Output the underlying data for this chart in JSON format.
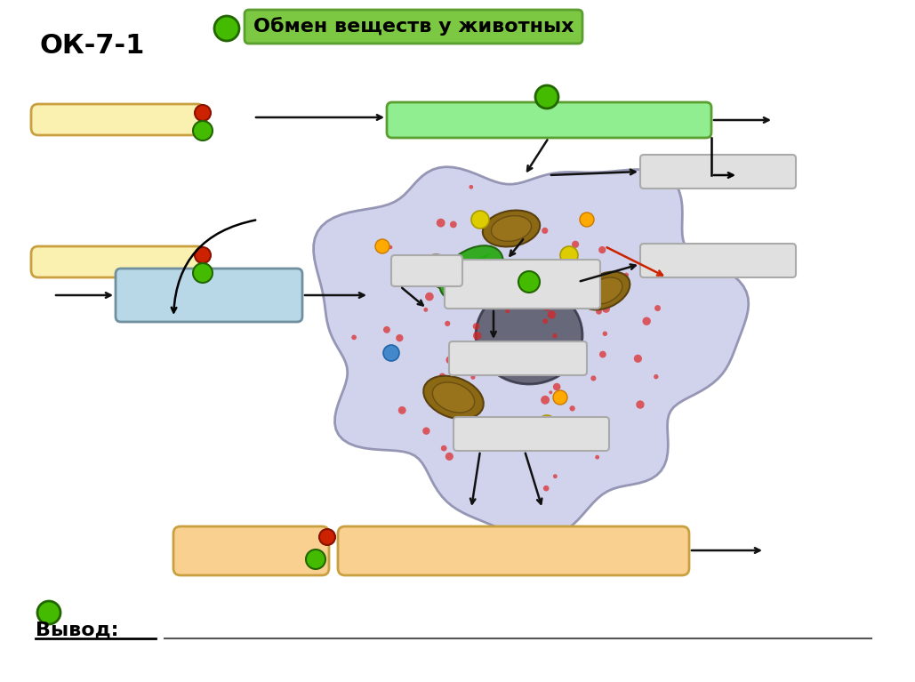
{
  "title": "ОК-7-1",
  "subtitle": "Обмен веществ у животных",
  "vyvod_label": "Вывод:",
  "bg_color": "#ffffff",
  "title_fontsize": 22,
  "subtitle_fontsize": 16,
  "green_box_color": "#7dc843",
  "green_box_border": "#5a9e2f",
  "light_green_box_color": "#90ee90",
  "light_green_box_border": "#5a9e2f",
  "yellow_box_color": "#faf0b0",
  "yellow_box_border": "#c8a040",
  "peach_box_color": "#fad090",
  "peach_box_border": "#c8a040",
  "gray_box_color": "#e0e0e0",
  "gray_box_border": "#aaaaaa",
  "light_blue_box_color": "#b8d8e8",
  "light_blue_box_border": "#7090a0",
  "cell_fill": "#c8cce8",
  "cell_border": "#8888aa",
  "green_dot_color": "#44bb00",
  "red_dot_color": "#cc2200",
  "arrow_color": "#111111",
  "red_arrow_color": "#cc2200"
}
